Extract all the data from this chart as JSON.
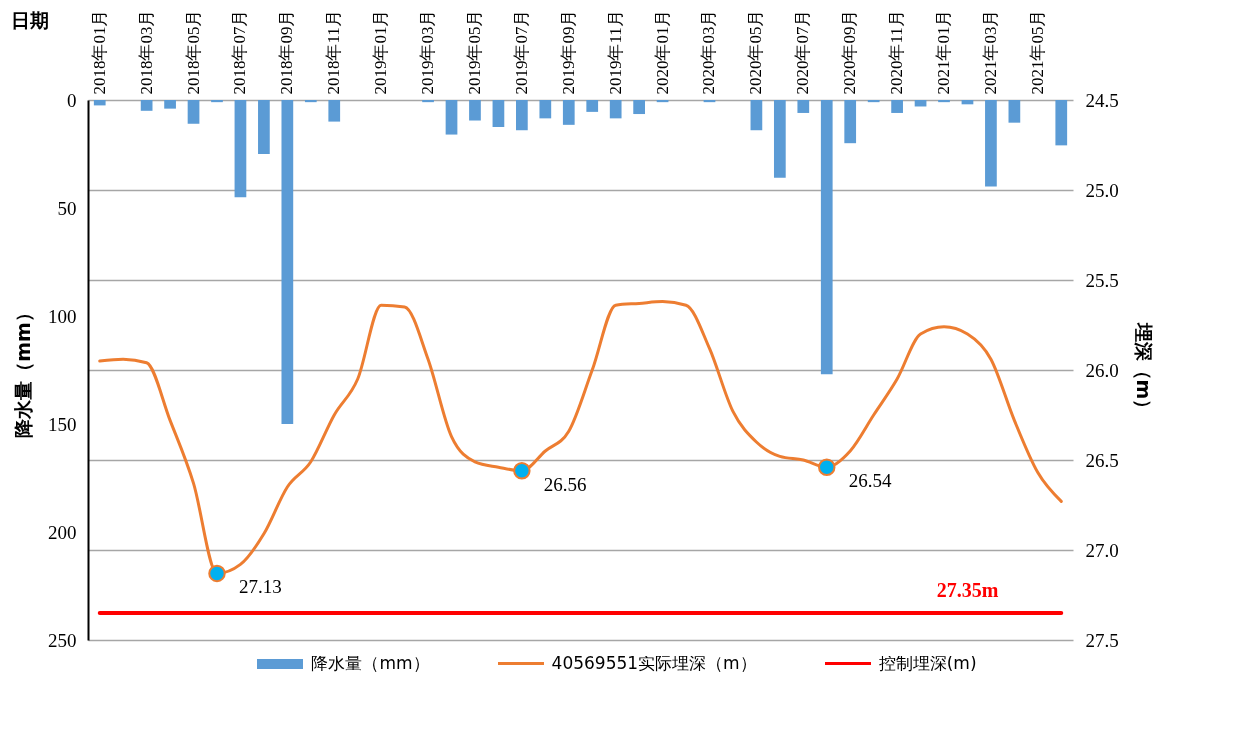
{
  "chart_data": {
    "type": "bar",
    "xlabel": "日期",
    "ylabel": "降水量（mm）",
    "y2label": "埋深（m）",
    "categories": [
      "2018年01月",
      null,
      "2018年03月",
      null,
      "2018年05月",
      null,
      "2018年07月",
      null,
      "2018年09月",
      null,
      "2018年11月",
      null,
      "2019年01月",
      null,
      "2019年03月",
      null,
      "2019年05月",
      null,
      "2019年07月",
      null,
      "2019年09月",
      null,
      "2019年11月",
      null,
      "2020年01月",
      null,
      "2020年03月",
      null,
      "2020年05月",
      null,
      "2020年07月",
      null,
      "2020年09月",
      null,
      "2020年11月",
      null,
      "2021年01月",
      null,
      "2021年03月",
      null,
      "2021年05月",
      null
    ],
    "series": [
      {
        "name": "降水量（mm）",
        "color": "#5b9bd5",
        "values": [
          2.5,
          0,
          5,
          4,
          11,
          1,
          45,
          25,
          150,
          1,
          10,
          0,
          0,
          0,
          1,
          16,
          9.5,
          12.5,
          14,
          8.5,
          11.5,
          5.5,
          8.5,
          6.5,
          1,
          0,
          1,
          0,
          14,
          36,
          6,
          127,
          20,
          1,
          6,
          3,
          1,
          2,
          40,
          10.5,
          0,
          21
        ]
      },
      {
        "name": "40569551实际埋深（m）",
        "type": "line",
        "axis": "y2",
        "color": "#ed7d31",
        "values": [
          25.95,
          25.94,
          25.96,
          26.28,
          26.63,
          27.13,
          27.08,
          26.91,
          26.65,
          26.51,
          26.25,
          26.05,
          25.64,
          25.65,
          25.94,
          26.37,
          26.51,
          26.54,
          26.56,
          26.45,
          26.34,
          26.0,
          25.64,
          25.63,
          25.62,
          25.64,
          25.88,
          26.23,
          26.4,
          26.48,
          26.5,
          26.54,
          26.45,
          26.25,
          26.05,
          25.8,
          25.76,
          25.8,
          25.94,
          26.28,
          26.57,
          26.73
        ]
      },
      {
        "type": "scatter",
        "axis": "y2",
        "color": "#00b0f0",
        "marker": "circle",
        "values": [
          null,
          null,
          null,
          null,
          null,
          27.13,
          null,
          null,
          null,
          null,
          null,
          null,
          null,
          null,
          null,
          null,
          null,
          null,
          26.56,
          null,
          null,
          null,
          null,
          null,
          null,
          null,
          null,
          null,
          null,
          null,
          null,
          26.54,
          null,
          null,
          null,
          null,
          null,
          null,
          null,
          null,
          null,
          null
        ],
        "value_labels": [
          null,
          null,
          null,
          null,
          null,
          "27.13",
          null,
          null,
          null,
          null,
          null,
          null,
          null,
          null,
          null,
          null,
          null,
          null,
          "26.56",
          null,
          null,
          null,
          null,
          null,
          null,
          null,
          null,
          null,
          null,
          null,
          null,
          "26.54",
          null,
          null,
          null,
          null,
          null,
          null,
          null,
          null,
          null,
          null
        ]
      },
      {
        "name": "控制埋深(m)",
        "type": "line",
        "axis": "y2",
        "color": "#ff0000",
        "values": [
          27.35,
          27.35,
          27.35,
          27.35,
          27.35,
          27.35,
          27.35,
          27.35,
          27.35,
          27.35,
          27.35,
          27.35,
          27.35,
          27.35,
          27.35,
          27.35,
          27.35,
          27.35,
          27.35,
          27.35,
          27.35,
          27.35,
          27.35,
          27.35,
          27.35,
          27.35,
          27.35,
          27.35,
          27.35,
          27.35,
          27.35,
          27.35,
          27.35,
          27.35,
          27.35,
          27.35,
          27.35,
          27.35,
          27.35,
          27.35,
          27.35,
          27.35
        ],
        "value_labels": [
          null,
          null,
          null,
          null,
          null,
          null,
          null,
          null,
          null,
          null,
          null,
          null,
          null,
          null,
          null,
          null,
          null,
          null,
          null,
          null,
          null,
          null,
          null,
          null,
          null,
          null,
          null,
          null,
          null,
          null,
          null,
          null,
          null,
          null,
          null,
          null,
          null,
          "27.35m",
          null,
          null,
          null,
          null
        ]
      }
    ],
    "ylim": [
      250,
      0
    ],
    "yticks": [
      0,
      50,
      100,
      150,
      200,
      250
    ],
    "y2lim": [
      27.5,
      24.5
    ],
    "y2ticks": [
      {
        "value": 24.5,
        "label": "24.5"
      },
      {
        "value": 25,
        "label": "25.0"
      },
      {
        "value": 25.5,
        "label": "25.5"
      },
      {
        "value": 26,
        "label": "26.0"
      },
      {
        "value": 26.5,
        "label": "26.5"
      },
      {
        "value": 27,
        "label": "27.0"
      },
      {
        "value": 27.5,
        "label": "27.5"
      }
    ],
    "grid": "y2",
    "legend": "bottom"
  }
}
